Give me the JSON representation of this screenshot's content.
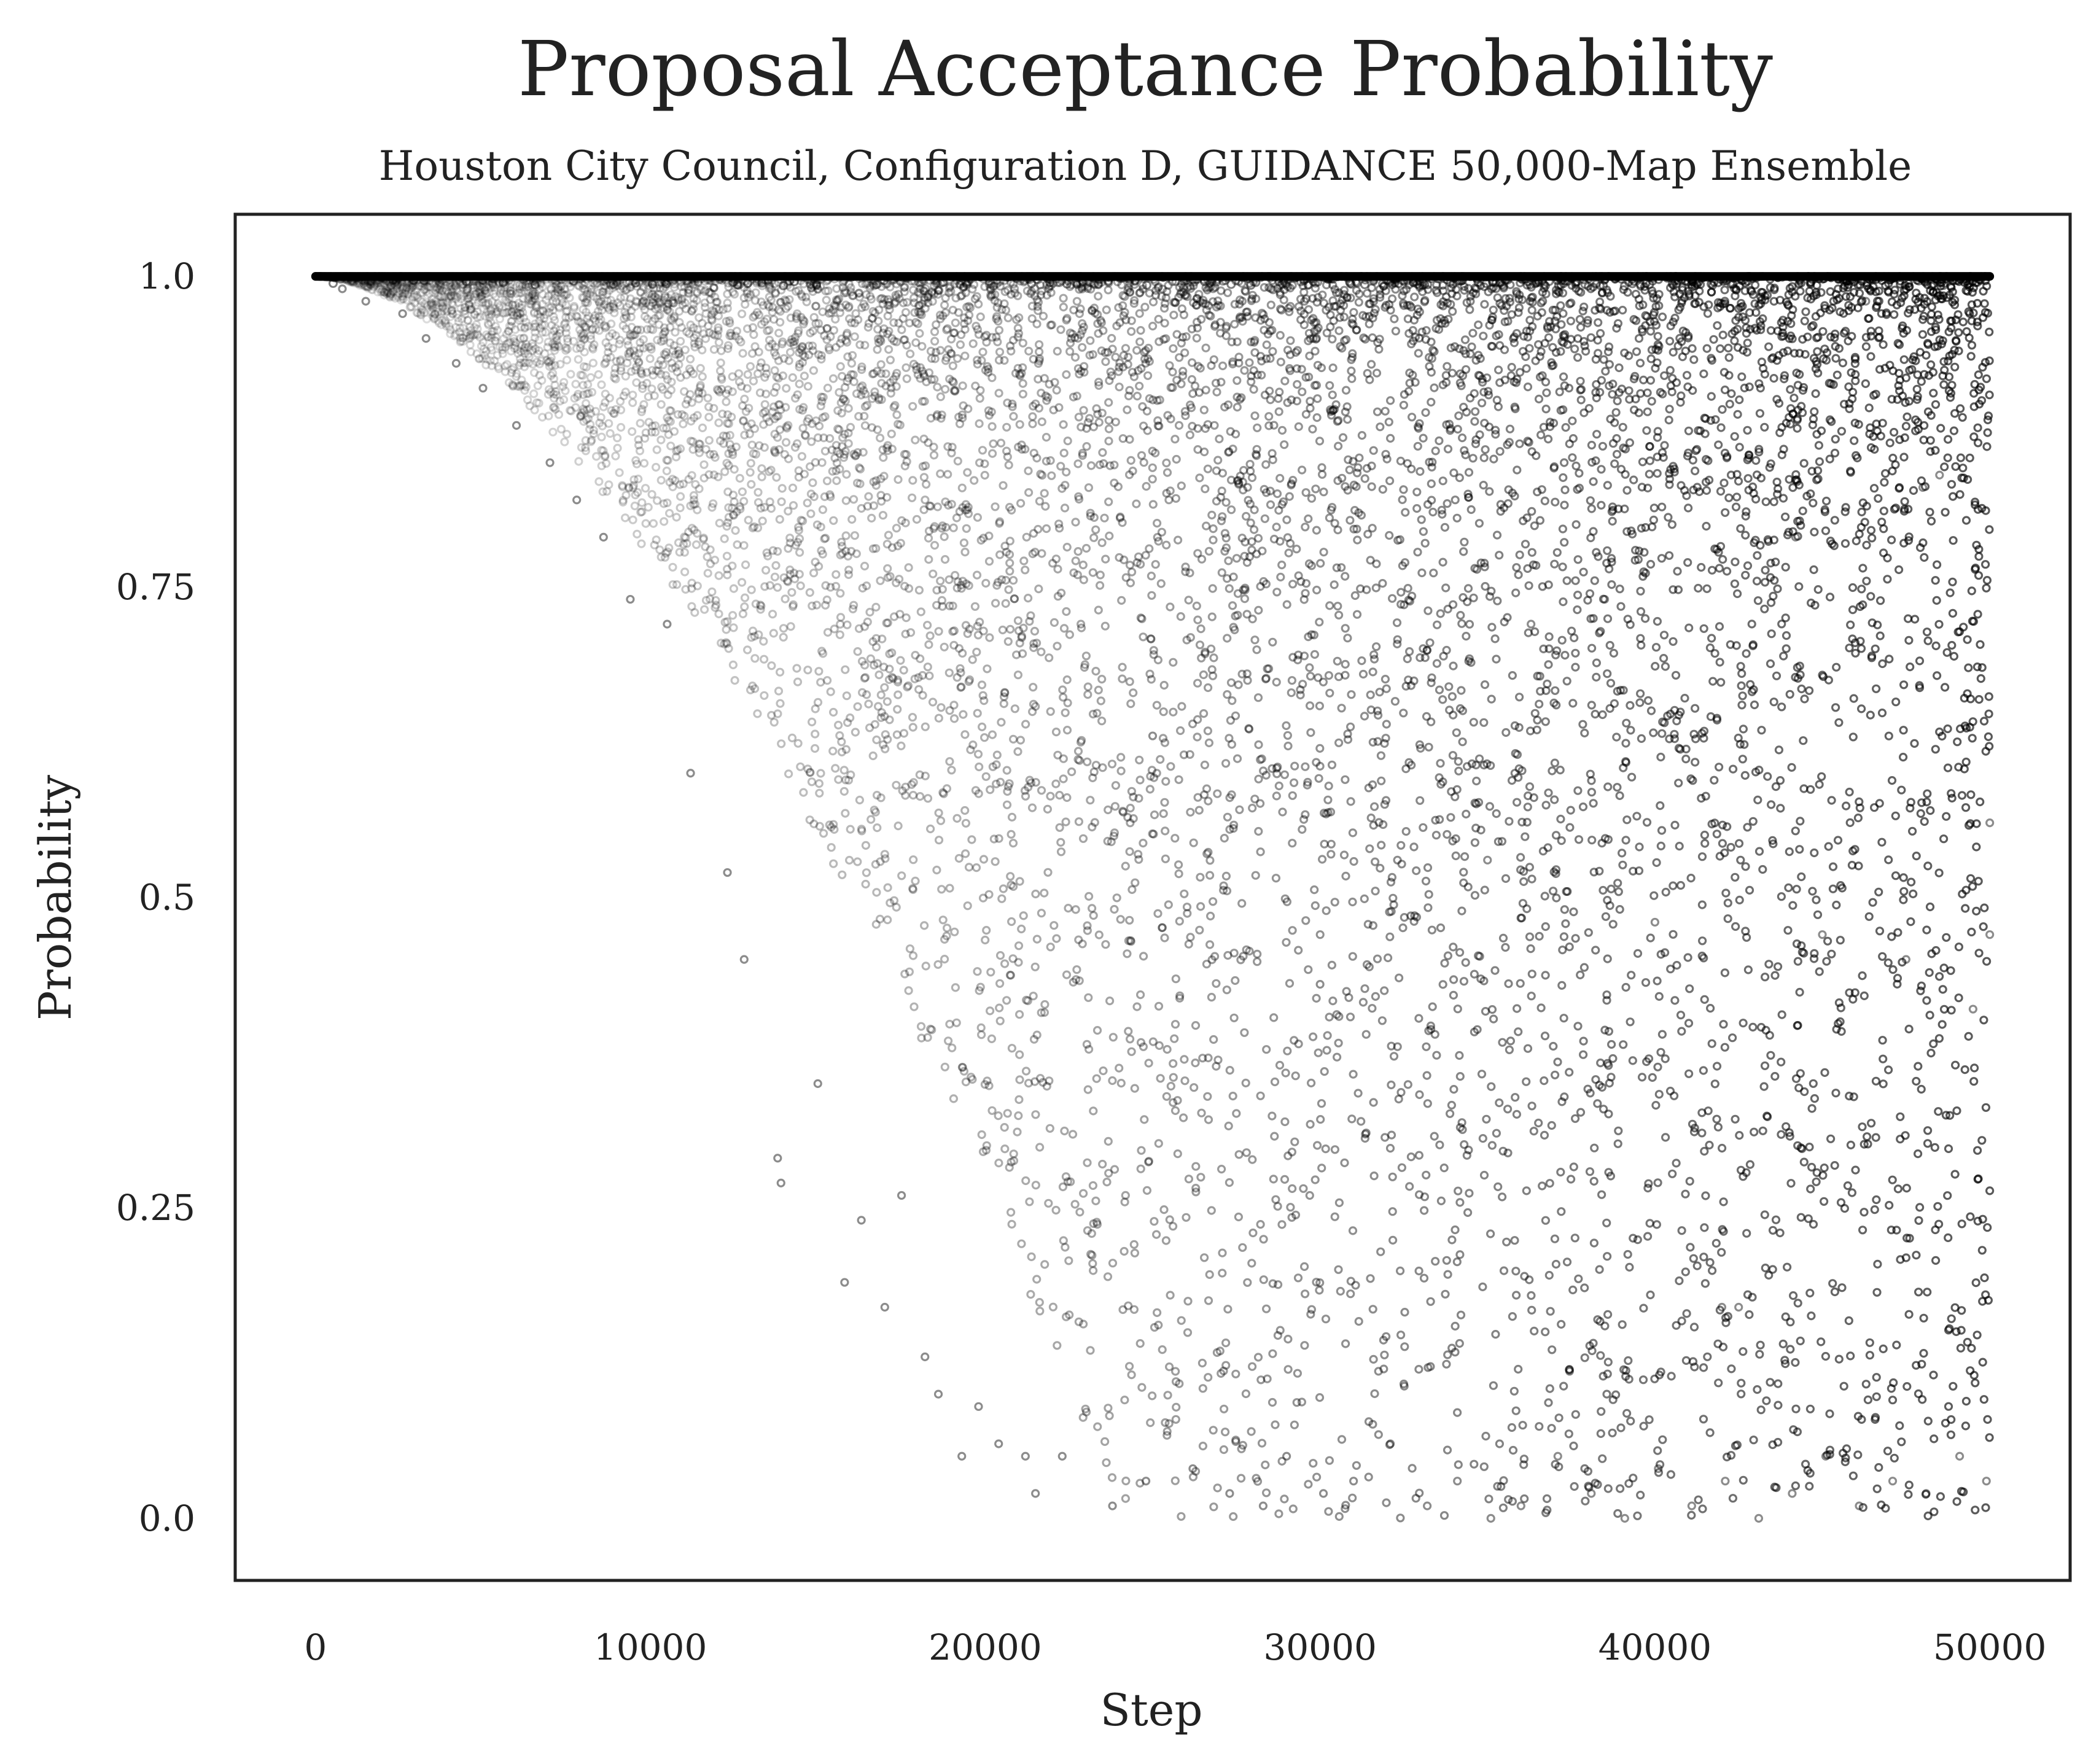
{
  "chart_data": {
    "type": "scatter",
    "title": "Proposal Acceptance Probability",
    "subtitle": "Houston City Council, Configuration D, GUIDANCE 50,000-Map Ensemble",
    "xlabel": "Step",
    "ylabel": "Probability",
    "xlim": [
      -2400,
      52400
    ],
    "ylim": [
      -0.05,
      1.05
    ],
    "x_ticks": [
      0,
      10000,
      20000,
      30000,
      40000,
      50000
    ],
    "x_tick_labels": [
      "0",
      "10000",
      "20000",
      "30000",
      "40000",
      "50000"
    ],
    "y_ticks": [
      0.0,
      0.25,
      0.5,
      0.75,
      1.0
    ],
    "y_tick_labels": [
      "0.0",
      "0.25",
      "0.5",
      "0.75",
      "1.0"
    ],
    "grid": false,
    "marker": "hollow-circle",
    "marker_color": "#000000",
    "ceiling_value": 1.0,
    "series": [
      {
        "points": [
          [
            0,
            1.0
          ],
          [
            800,
            0.99
          ],
          [
            1500,
            0.98
          ],
          [
            2600,
            0.97
          ],
          [
            3300,
            0.95
          ],
          [
            4200,
            0.93
          ],
          [
            5000,
            0.91
          ],
          [
            6000,
            0.88
          ],
          [
            7000,
            0.85
          ],
          [
            7800,
            0.82
          ],
          [
            8600,
            0.79
          ],
          [
            9400,
            0.74
          ],
          [
            10500,
            0.72
          ],
          [
            11200,
            0.6
          ],
          [
            12300,
            0.52
          ],
          [
            12800,
            0.45
          ],
          [
            13800,
            0.29
          ],
          [
            13900,
            0.27
          ],
          [
            15000,
            0.35
          ],
          [
            15800,
            0.19
          ],
          [
            16300,
            0.24
          ],
          [
            17000,
            0.17
          ],
          [
            17500,
            0.26
          ],
          [
            18200,
            0.13
          ],
          [
            18600,
            0.1
          ],
          [
            19300,
            0.05
          ],
          [
            19800,
            0.09
          ],
          [
            20400,
            0.06
          ],
          [
            21200,
            0.05
          ],
          [
            21500,
            0.02
          ],
          [
            22300,
            0.05
          ],
          [
            23800,
            0.01
          ],
          [
            24800,
            0.03
          ],
          [
            26200,
            0.04
          ],
          [
            27300,
            0.02
          ],
          [
            28300,
            0.01
          ],
          [
            29000,
            0.05
          ],
          [
            30100,
            0.02
          ],
          [
            31000,
            0.03
          ],
          [
            32100,
            0.06
          ],
          [
            33200,
            0.01
          ],
          [
            34100,
            0.03
          ],
          [
            35100,
            0.0
          ],
          [
            36000,
            0.01
          ],
          [
            37100,
            0.05
          ],
          [
            38100,
            0.02
          ],
          [
            39100,
            0.0
          ],
          [
            40100,
            0.04
          ],
          [
            41100,
            0.01
          ],
          [
            42100,
            0.03
          ],
          [
            43100,
            0.0
          ],
          [
            44100,
            0.02
          ],
          [
            45100,
            0.05
          ],
          [
            46100,
            0.01
          ],
          [
            47100,
            0.03
          ],
          [
            48100,
            0.02
          ],
          [
            49100,
            0.05
          ],
          [
            49900,
            0.03
          ],
          [
            25000,
            0.63
          ],
          [
            30000,
            0.43
          ],
          [
            35000,
            0.53
          ],
          [
            40000,
            0.48
          ],
          [
            42000,
            0.17
          ],
          [
            42500,
            0.17
          ],
          [
            45000,
            0.47
          ],
          [
            48000,
            0.83
          ],
          [
            48500,
            0.84
          ],
          [
            49500,
            0.41
          ],
          [
            50000,
            0.56
          ],
          [
            50000,
            0.47
          ],
          [
            44200,
            0.79
          ],
          [
            46300,
            0.98
          ],
          [
            47500,
            0.45
          ],
          [
            38500,
            0.74
          ],
          [
            36300,
            0.72
          ],
          [
            33000,
            0.62
          ]
        ]
      }
    ]
  }
}
